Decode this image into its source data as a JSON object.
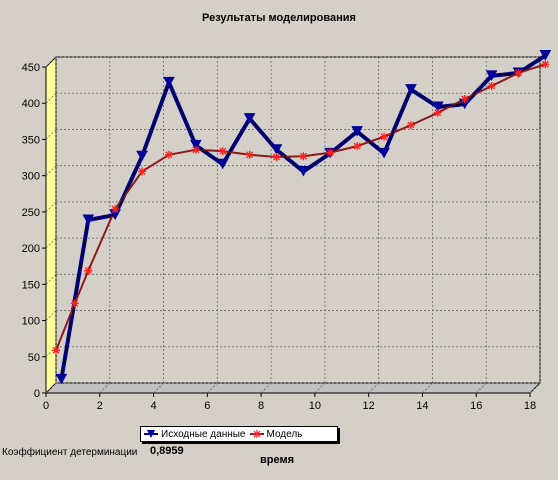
{
  "chart_data": {
    "type": "line",
    "title": "Результаты моделирования",
    "xlabel": "время",
    "xlim": [
      0,
      18
    ],
    "ylim": [
      0,
      450
    ],
    "xticks": [
      0,
      2,
      4,
      6,
      8,
      10,
      12,
      14,
      16,
      18
    ],
    "yticks": [
      0,
      50,
      100,
      150,
      200,
      250,
      300,
      350,
      400,
      450
    ],
    "grid": true,
    "legend_position": "bottom",
    "series": [
      {
        "name": "Исходные данные",
        "color": "#000099",
        "marker": "triangle-down",
        "x": [
          0.2,
          1.2,
          2.2,
          3.2,
          4.2,
          5.2,
          6.2,
          7.2,
          8.2,
          9.2,
          10.2,
          11.2,
          12.2,
          13.2,
          14.2,
          15.2,
          16.2,
          17.2,
          18.2
        ],
        "y": [
          5,
          225,
          232,
          313,
          415,
          328,
          302,
          365,
          322,
          292,
          317,
          347,
          317,
          405,
          381,
          385,
          424,
          428,
          452
        ]
      },
      {
        "name": "Модель",
        "color": "#ff2020",
        "marker": "star",
        "x": [
          0.0,
          0.7,
          1.2,
          2.2,
          3.2,
          4.2,
          5.2,
          6.2,
          7.2,
          8.2,
          9.2,
          10.2,
          11.2,
          12.2,
          13.2,
          14.2,
          15.2,
          16.2,
          17.2,
          18.2
        ],
        "y": [
          45,
          110,
          155,
          240,
          292,
          315,
          322,
          320,
          315,
          312,
          313,
          318,
          327,
          340,
          356,
          373,
          392,
          410,
          428,
          440
        ]
      }
    ]
  },
  "footer": {
    "coef_label": "Коэффициент детерминации",
    "coef_value": "0,8959"
  }
}
